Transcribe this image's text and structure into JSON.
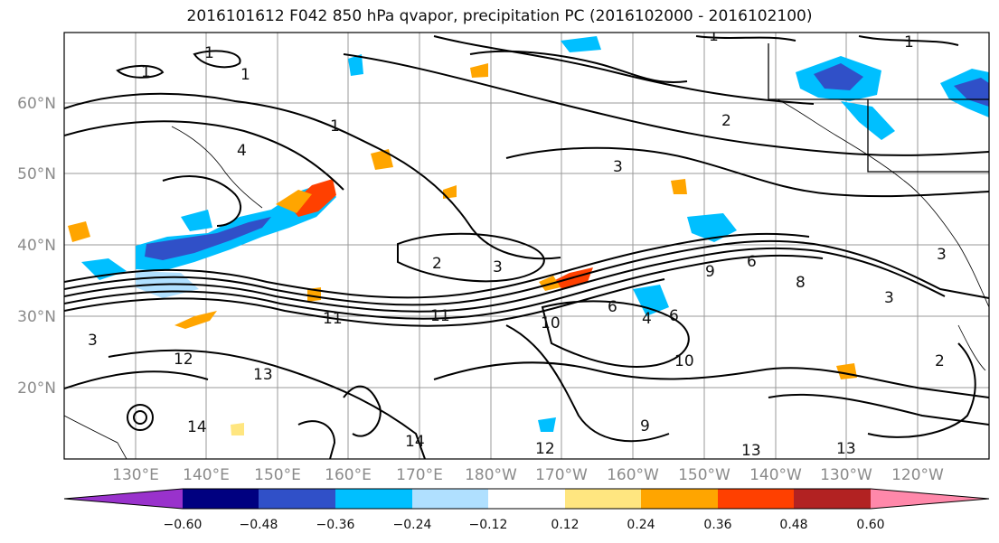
{
  "title": "2016101612 F042 850 hPa qvapor, precipitation PC (2016102000 - 2016102100)",
  "lat_labels": [
    "60°N",
    "50°N",
    "40°N",
    "30°N",
    "20°N"
  ],
  "lon_labels": [
    "130°E",
    "140°E",
    "150°E",
    "160°E",
    "170°E",
    "180°W",
    "170°W",
    "160°W",
    "150°W",
    "140°W",
    "130°W",
    "120°W"
  ],
  "contour_labels": [
    "1",
    "1",
    "1",
    "1",
    "1",
    "1",
    "2",
    "3",
    "4",
    "3",
    "2",
    "3",
    "6",
    "8",
    "9",
    "6",
    "4",
    "6",
    "10",
    "11",
    "11",
    "12",
    "13",
    "13",
    "13",
    "14",
    "14",
    "12",
    "9",
    "10",
    "3",
    "2",
    "3"
  ],
  "colorbar": {
    "ticks": [
      "−0.60",
      "−0.48",
      "−0.36",
      "−0.24",
      "−0.12",
      "0.12",
      "0.24",
      "0.36",
      "0.48",
      "0.60"
    ],
    "colors": [
      "#9932cc",
      "#000080",
      "#3050c8",
      "#00bfff",
      "#b0e0ff",
      "#ffffff",
      "#ffe680",
      "#ffa500",
      "#ff4000",
      "#b22222",
      "#ff88aa"
    ]
  }
}
